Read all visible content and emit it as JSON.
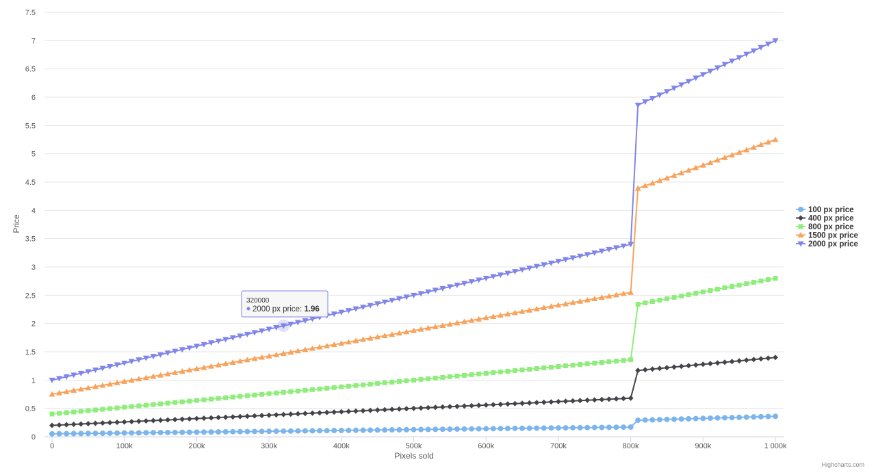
{
  "chart_data": {
    "type": "line",
    "title": "",
    "xlabel": "Pixels sold",
    "ylabel": "Price",
    "xlim": [
      0,
      1000000
    ],
    "ylim": [
      0,
      7.5
    ],
    "x_ticks": [
      0,
      100000,
      200000,
      300000,
      400000,
      500000,
      600000,
      700000,
      800000,
      900000,
      1000000
    ],
    "x_tick_labels": [
      "0",
      "100k",
      "200k",
      "300k",
      "400k",
      "500k",
      "600k",
      "700k",
      "800k",
      "900k",
      "1 000k"
    ],
    "y_ticks": [
      0,
      0.5,
      1,
      1.5,
      2,
      2.5,
      3,
      3.5,
      4,
      4.5,
      5,
      5.5,
      6,
      6.5,
      7,
      7.5
    ],
    "y_tick_labels": [
      "0",
      "0.5",
      "1",
      "1.5",
      "2",
      "2.5",
      "3",
      "3.5",
      "4",
      "4.5",
      "5",
      "5.5",
      "6",
      "6.5",
      "7",
      "7.5"
    ],
    "grid": true,
    "legend_position": "right",
    "x_step": 10000,
    "series": [
      {
        "name": "100 px price",
        "color": "#7cb5ec",
        "marker": "circle",
        "segments": [
          {
            "from_x": 0,
            "to_x": 800000,
            "start": 0.05,
            "end": 0.17
          },
          {
            "from_x": 810000,
            "to_x": 1000000,
            "start": 0.29,
            "end": 0.36
          }
        ]
      },
      {
        "name": "400 px price",
        "color": "#434348",
        "marker": "diamond",
        "segments": [
          {
            "from_x": 0,
            "to_x": 800000,
            "start": 0.2,
            "end": 0.68
          },
          {
            "from_x": 810000,
            "to_x": 1000000,
            "start": 1.17,
            "end": 1.4
          }
        ]
      },
      {
        "name": "800 px price",
        "color": "#90ed7d",
        "marker": "square",
        "segments": [
          {
            "from_x": 0,
            "to_x": 800000,
            "start": 0.4,
            "end": 1.36
          },
          {
            "from_x": 810000,
            "to_x": 1000000,
            "start": 2.34,
            "end": 2.8
          }
        ]
      },
      {
        "name": "1500 px price",
        "color": "#f7a35c",
        "marker": "triangle",
        "segments": [
          {
            "from_x": 0,
            "to_x": 800000,
            "start": 0.75,
            "end": 2.55
          },
          {
            "from_x": 810000,
            "to_x": 1000000,
            "start": 4.39,
            "end": 5.25
          }
        ]
      },
      {
        "name": "2000 px price",
        "color": "#8085e9",
        "marker": "triangle-down",
        "segments": [
          {
            "from_x": 0,
            "to_x": 800000,
            "start": 1.0,
            "end": 3.4
          },
          {
            "from_x": 810000,
            "to_x": 1000000,
            "start": 5.86,
            "end": 7.0
          }
        ]
      }
    ],
    "tooltip": {
      "x": 320000,
      "series": "2000 px price",
      "header": "320000",
      "label": "2000 px price: ",
      "value": "1.96"
    }
  },
  "credits": "Highcharts.com"
}
